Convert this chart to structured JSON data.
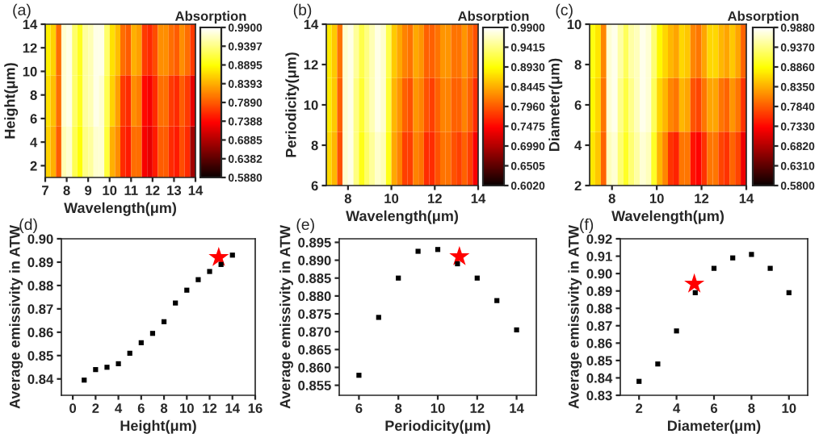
{
  "chart_data": [
    {
      "type": "heatmap",
      "title": "(a)",
      "xlabel": "Wavelength(μm)",
      "ylabel": "Height(μm)",
      "clabel": "Absorption",
      "x": [
        7.125,
        7.375,
        7.625,
        7.875,
        8.125,
        8.375,
        8.625,
        8.875,
        9.125,
        9.375,
        9.625,
        9.875,
        10.125,
        10.375,
        10.625,
        10.875,
        11.125,
        11.375,
        11.625,
        11.875,
        12.125,
        12.375,
        12.625,
        12.875,
        13.125,
        13.375,
        13.625,
        13.875
      ],
      "cells": [
        [
          0.88,
          0.86,
          0.8,
          0.97,
          0.98,
          0.93,
          0.9,
          0.95,
          0.96,
          0.98,
          0.98,
          0.93,
          0.87,
          0.85,
          0.8,
          0.79,
          0.84,
          0.83,
          0.77,
          0.76,
          0.78,
          0.82,
          0.82,
          0.8,
          0.79,
          0.82,
          0.8,
          0.77
        ],
        [
          0.87,
          0.85,
          0.8,
          0.97,
          0.98,
          0.93,
          0.9,
          0.95,
          0.96,
          0.98,
          0.97,
          0.92,
          0.86,
          0.83,
          0.77,
          0.76,
          0.82,
          0.81,
          0.74,
          0.73,
          0.76,
          0.8,
          0.8,
          0.77,
          0.76,
          0.79,
          0.77,
          0.72
        ],
        [
          0.86,
          0.84,
          0.79,
          0.96,
          0.97,
          0.92,
          0.89,
          0.94,
          0.95,
          0.97,
          0.97,
          0.91,
          0.84,
          0.82,
          0.76,
          0.75,
          0.8,
          0.8,
          0.73,
          0.72,
          0.75,
          0.79,
          0.79,
          0.76,
          0.75,
          0.78,
          0.76,
          0.68
        ]
      ],
      "xlim": [
        7,
        14
      ],
      "xticks": [
        7,
        8,
        9,
        10,
        11,
        12,
        13,
        14
      ],
      "ylim": [
        1,
        14
      ],
      "yticks": [
        2,
        4,
        6,
        8,
        10,
        12,
        14
      ],
      "clim": [
        0.588,
        0.99
      ],
      "cticks": [
        {
          "value": 0.588,
          "label": "0.5880"
        },
        {
          "value": 0.6382,
          "label": "0.6382"
        },
        {
          "value": 0.6885,
          "label": "0.6885"
        },
        {
          "value": 0.7388,
          "label": "0.7388"
        },
        {
          "value": 0.789,
          "label": "0.7890"
        },
        {
          "value": 0.8393,
          "label": "0.8393"
        },
        {
          "value": 0.8895,
          "label": "0.8895"
        },
        {
          "value": 0.9397,
          "label": "0.9397"
        },
        {
          "value": 0.99,
          "label": "0.9900"
        }
      ]
    },
    {
      "type": "heatmap",
      "title": "(b)",
      "xlabel": "Wavelength(μm)",
      "ylabel": "Periodicity(μm)",
      "clabel": "Absorption",
      "x": [
        7.125,
        7.375,
        7.625,
        7.875,
        8.125,
        8.375,
        8.625,
        8.875,
        9.125,
        9.375,
        9.625,
        9.875,
        10.125,
        10.375,
        10.625,
        10.875,
        11.125,
        11.375,
        11.625,
        11.875,
        12.125,
        12.375,
        12.625,
        12.875,
        13.125,
        13.375,
        13.625,
        13.875
      ],
      "cells": [
        [
          0.88,
          0.86,
          0.81,
          0.97,
          0.98,
          0.95,
          0.92,
          0.94,
          0.96,
          0.98,
          0.97,
          0.92,
          0.86,
          0.84,
          0.82,
          0.81,
          0.84,
          0.83,
          0.8,
          0.8,
          0.81,
          0.83,
          0.83,
          0.81,
          0.81,
          0.83,
          0.81,
          0.79
        ],
        [
          0.88,
          0.86,
          0.8,
          0.97,
          0.98,
          0.94,
          0.91,
          0.94,
          0.96,
          0.98,
          0.97,
          0.91,
          0.85,
          0.83,
          0.8,
          0.79,
          0.83,
          0.82,
          0.79,
          0.78,
          0.8,
          0.82,
          0.82,
          0.8,
          0.8,
          0.82,
          0.8,
          0.77
        ],
        [
          0.87,
          0.85,
          0.79,
          0.97,
          0.98,
          0.94,
          0.9,
          0.93,
          0.95,
          0.97,
          0.96,
          0.9,
          0.84,
          0.82,
          0.78,
          0.78,
          0.82,
          0.81,
          0.77,
          0.77,
          0.79,
          0.81,
          0.81,
          0.79,
          0.78,
          0.8,
          0.78,
          0.74
        ]
      ],
      "xlim": [
        7,
        14
      ],
      "xticks": [
        8,
        10,
        12,
        14
      ],
      "ylim": [
        6,
        14
      ],
      "yticks": [
        6,
        8,
        10,
        12,
        14
      ],
      "clim": [
        0.602,
        0.99
      ],
      "cticks": [
        {
          "value": 0.602,
          "label": "0.6020"
        },
        {
          "value": 0.6505,
          "label": "0.6505"
        },
        {
          "value": 0.699,
          "label": "0.6990"
        },
        {
          "value": 0.7475,
          "label": "0.7475"
        },
        {
          "value": 0.796,
          "label": "0.7960"
        },
        {
          "value": 0.8445,
          "label": "0.8445"
        },
        {
          "value": 0.893,
          "label": "0.8930"
        },
        {
          "value": 0.9415,
          "label": "0.9415"
        },
        {
          "value": 0.99,
          "label": "0.9900"
        }
      ]
    },
    {
      "type": "heatmap",
      "title": "(c)",
      "xlabel": "Wavelength(μm)",
      "ylabel": "Diameter(μm)",
      "clabel": "Absorption",
      "x": [
        7.125,
        7.375,
        7.625,
        7.875,
        8.125,
        8.375,
        8.625,
        8.875,
        9.125,
        9.375,
        9.625,
        9.875,
        10.125,
        10.375,
        10.625,
        10.875,
        11.125,
        11.375,
        11.625,
        11.875,
        12.125,
        12.375,
        12.625,
        12.875,
        13.125,
        13.375,
        13.625,
        13.875
      ],
      "cells": [
        [
          0.89,
          0.87,
          0.81,
          0.97,
          0.98,
          0.95,
          0.92,
          0.95,
          0.96,
          0.98,
          0.97,
          0.93,
          0.88,
          0.86,
          0.84,
          0.83,
          0.86,
          0.85,
          0.81,
          0.8,
          0.83,
          0.86,
          0.86,
          0.84,
          0.83,
          0.85,
          0.83,
          0.79
        ],
        [
          0.88,
          0.86,
          0.8,
          0.97,
          0.98,
          0.94,
          0.91,
          0.94,
          0.96,
          0.98,
          0.97,
          0.92,
          0.86,
          0.84,
          0.81,
          0.8,
          0.84,
          0.83,
          0.78,
          0.77,
          0.8,
          0.83,
          0.83,
          0.8,
          0.79,
          0.82,
          0.8,
          0.76
        ],
        [
          0.87,
          0.85,
          0.79,
          0.96,
          0.97,
          0.93,
          0.9,
          0.93,
          0.95,
          0.97,
          0.96,
          0.9,
          0.84,
          0.81,
          0.76,
          0.75,
          0.8,
          0.8,
          0.74,
          0.73,
          0.76,
          0.8,
          0.8,
          0.77,
          0.76,
          0.79,
          0.77,
          0.72
        ]
      ],
      "xlim": [
        7,
        14
      ],
      "xticks": [
        8,
        10,
        12,
        14
      ],
      "ylim": [
        2,
        10
      ],
      "yticks": [
        2,
        4,
        6,
        8,
        10
      ],
      "clim": [
        0.58,
        0.988
      ],
      "cticks": [
        {
          "value": 0.58,
          "label": "0.5800"
        },
        {
          "value": 0.631,
          "label": "0.6310"
        },
        {
          "value": 0.682,
          "label": "0.6820"
        },
        {
          "value": 0.733,
          "label": "0.7330"
        },
        {
          "value": 0.784,
          "label": "0.7840"
        },
        {
          "value": 0.835,
          "label": "0.8350"
        },
        {
          "value": 0.886,
          "label": "0.8860"
        },
        {
          "value": 0.937,
          "label": "0.9370"
        },
        {
          "value": 0.988,
          "label": "0.9880"
        }
      ]
    },
    {
      "type": "scatter",
      "title": "(d)",
      "xlabel": "Height(μm)",
      "ylabel": "Average emissivity in ATW",
      "marker": "square",
      "grid": false,
      "series": [
        {
          "color": "#000000",
          "x": [
            1,
            2,
            3,
            4,
            5,
            6,
            7,
            8,
            9,
            10,
            11,
            12,
            13,
            14
          ],
          "values": [
            0.8395,
            0.844,
            0.845,
            0.8465,
            0.851,
            0.8555,
            0.8595,
            0.8645,
            0.8725,
            0.878,
            0.8825,
            0.886,
            0.889,
            0.893
          ]
        },
        {
          "color": "#ff0000",
          "marker": "star",
          "x": [
            12.8
          ],
          "values": [
            0.892
          ]
        }
      ],
      "xlim": [
        -1,
        16
      ],
      "xticks": [
        0,
        2,
        4,
        6,
        8,
        10,
        12,
        14,
        16
      ],
      "ylim": [
        0.833,
        0.9
      ],
      "yticks": [
        {
          "value": 0.84,
          "label": "0.84"
        },
        {
          "value": 0.85,
          "label": "0.85"
        },
        {
          "value": 0.86,
          "label": "0.86"
        },
        {
          "value": 0.87,
          "label": "0.87"
        },
        {
          "value": 0.88,
          "label": "0.88"
        },
        {
          "value": 0.89,
          "label": "0.89"
        },
        {
          "value": 0.9,
          "label": "0.90"
        }
      ]
    },
    {
      "type": "scatter",
      "title": "(e)",
      "xlabel": "Periodicity(μm)",
      "ylabel": "Average emissivity in ATW",
      "marker": "square",
      "grid": false,
      "series": [
        {
          "color": "#000000",
          "x": [
            6,
            7,
            8,
            9,
            10,
            11,
            12,
            13,
            14
          ],
          "values": [
            0.8578,
            0.874,
            0.885,
            0.8925,
            0.893,
            0.889,
            0.885,
            0.8787,
            0.8705
          ]
        },
        {
          "color": "#ff0000",
          "marker": "star",
          "x": [
            11.1
          ],
          "values": [
            0.891
          ]
        }
      ],
      "xlim": [
        5,
        15
      ],
      "xticks": [
        6,
        8,
        10,
        12,
        14
      ],
      "ylim": [
        0.8522,
        0.896
      ],
      "yticks": [
        {
          "value": 0.855,
          "label": "0.855"
        },
        {
          "value": 0.86,
          "label": "0.860"
        },
        {
          "value": 0.865,
          "label": "0.865"
        },
        {
          "value": 0.87,
          "label": "0.870"
        },
        {
          "value": 0.875,
          "label": "0.875"
        },
        {
          "value": 0.88,
          "label": "0.880"
        },
        {
          "value": 0.885,
          "label": "0.885"
        },
        {
          "value": 0.89,
          "label": "0.890"
        },
        {
          "value": 0.895,
          "label": "0.895"
        }
      ]
    },
    {
      "type": "scatter",
      "title": "(f)",
      "xlabel": "Diameter(μm)",
      "ylabel": "Average emissivity in ATW",
      "marker": "square",
      "grid": false,
      "series": [
        {
          "color": "#000000",
          "x": [
            2,
            3,
            4,
            5,
            6,
            7,
            8,
            9,
            10
          ],
          "values": [
            0.838,
            0.848,
            0.867,
            0.889,
            0.903,
            0.909,
            0.911,
            0.903,
            0.889
          ]
        },
        {
          "color": "#ff0000",
          "marker": "star",
          "x": [
            4.95
          ],
          "values": [
            0.894
          ]
        }
      ],
      "xlim": [
        1,
        11
      ],
      "xticks": [
        2,
        4,
        6,
        8,
        10
      ],
      "ylim": [
        0.83,
        0.92
      ],
      "yticks": [
        {
          "value": 0.83,
          "label": "0.83"
        },
        {
          "value": 0.84,
          "label": "0.84"
        },
        {
          "value": 0.85,
          "label": "0.85"
        },
        {
          "value": 0.86,
          "label": "0.86"
        },
        {
          "value": 0.87,
          "label": "0.87"
        },
        {
          "value": 0.88,
          "label": "0.88"
        },
        {
          "value": 0.89,
          "label": "0.89"
        },
        {
          "value": 0.9,
          "label": "0.90"
        },
        {
          "value": 0.91,
          "label": "0.91"
        },
        {
          "value": 0.92,
          "label": "0.92"
        }
      ]
    }
  ]
}
